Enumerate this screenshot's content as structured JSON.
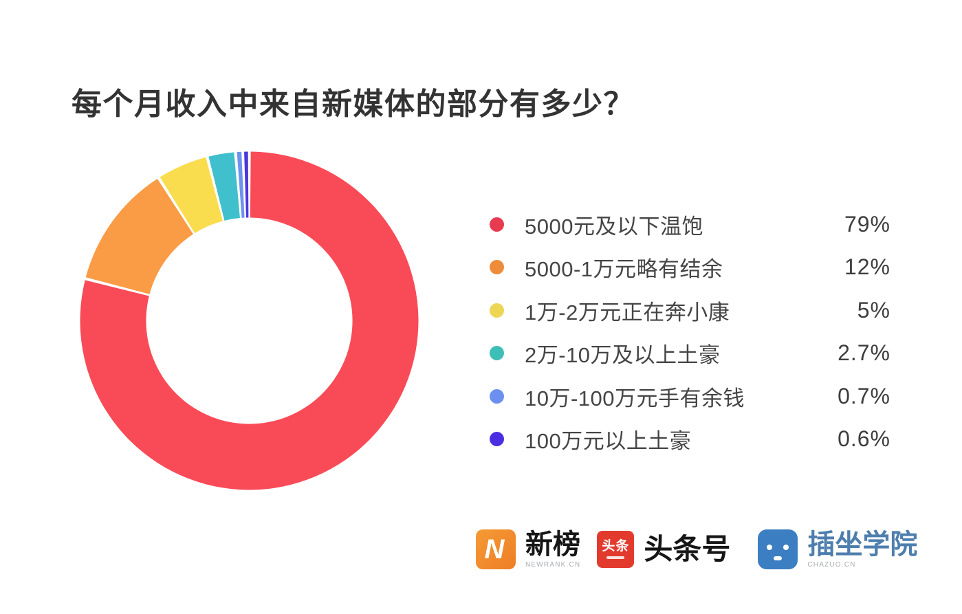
{
  "chart_data": {
    "type": "pie",
    "variant": "donut",
    "title": "每个月收入中来自新媒体的部分有多少？",
    "legend_position": "right",
    "direction": "clockwise",
    "start_angle_deg": 0,
    "inner_radius_ratio": 0.61,
    "series": [
      {
        "label": "5000元及以下温饱",
        "value": 79,
        "display": "79%",
        "color": "#F94B57",
        "legend_color": "#E73B50"
      },
      {
        "label": "5000-1万元略有结余",
        "value": 12,
        "display": "12%",
        "color": "#FA9B45",
        "legend_color": "#EE8C3B"
      },
      {
        "label": "1万-2万元正在奔小康",
        "value": 5,
        "display": "5%",
        "color": "#F9DD4F",
        "legend_color": "#EDD654"
      },
      {
        "label": "2万-10万及以上土豪",
        "value": 2.7,
        "display": "2.7%",
        "color": "#40C0CD",
        "legend_color": "#3DBFB7"
      },
      {
        "label": "10万-100万元手有余钱",
        "value": 0.7,
        "display": "0.7%",
        "color": "#6D93EE",
        "legend_color": "#6C90EF"
      },
      {
        "label": "100万元以上土豪",
        "value": 0.6,
        "display": "0.6%",
        "color": "#4B35DC",
        "legend_color": "#4B2EE1"
      }
    ]
  },
  "footer": {
    "logos": [
      {
        "id": "newrank",
        "icon": "lightning-n-icon",
        "icon_color": "#F0862D",
        "icon_glyph": "N",
        "text": "新榜",
        "subtext": "NEWRANK.CN"
      },
      {
        "id": "toutiao",
        "icon": "toutiao-icon",
        "icon_color": "#E23B2E",
        "icon_glyph": "头条",
        "text": "头条号"
      },
      {
        "id": "chazuo",
        "icon": "robot-face-icon",
        "icon_color": "#3B7EC1",
        "text": "插坐学院",
        "subtext": "CHAZUO.CN"
      }
    ]
  }
}
